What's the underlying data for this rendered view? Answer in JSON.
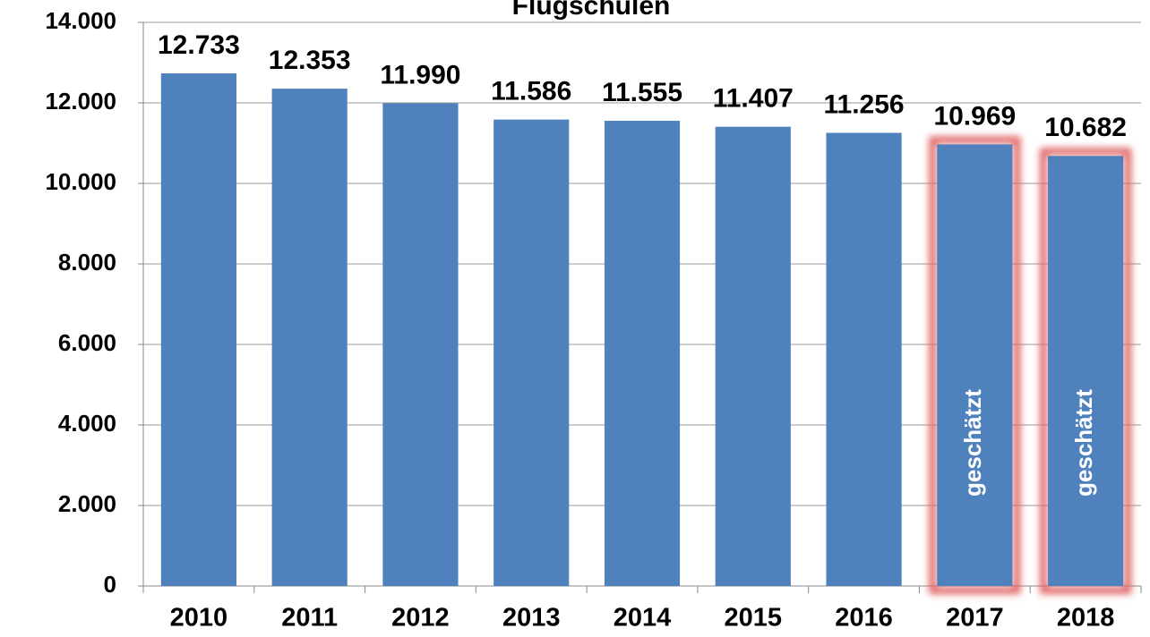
{
  "chart_data": {
    "type": "bar",
    "title": "Flugschulen",
    "categories": [
      "2010",
      "2011",
      "2012",
      "2013",
      "2014",
      "2015",
      "2016",
      "2017",
      "2018"
    ],
    "values": [
      12733,
      12353,
      11990,
      11586,
      11555,
      11407,
      11256,
      10969,
      10682
    ],
    "value_labels": [
      "12.733",
      "12.353",
      "11.990",
      "11.586",
      "11.555",
      "11.407",
      "11.256",
      "10.969",
      "10.682"
    ],
    "color": "#4f81bd",
    "ylim": [
      0,
      14000
    ],
    "yticks": [
      0,
      {
        "value": 2000,
        "label": "2.000"
      },
      {
        "value": 4000,
        "label": "4.000"
      },
      {
        "value": 6000,
        "label": "6.000"
      },
      {
        "value": 8000,
        "label": "8.000"
      },
      {
        "value": 10000,
        "label": "10.000"
      },
      {
        "value": 12000,
        "label": "12.000"
      },
      {
        "value": 14000,
        "label": "14.000"
      }
    ],
    "grid": true,
    "annotations": [
      {
        "category": "2017",
        "text": "geschätzt"
      },
      {
        "category": "2018",
        "text": "geschätzt"
      }
    ],
    "highlight_color": "#e06666"
  }
}
